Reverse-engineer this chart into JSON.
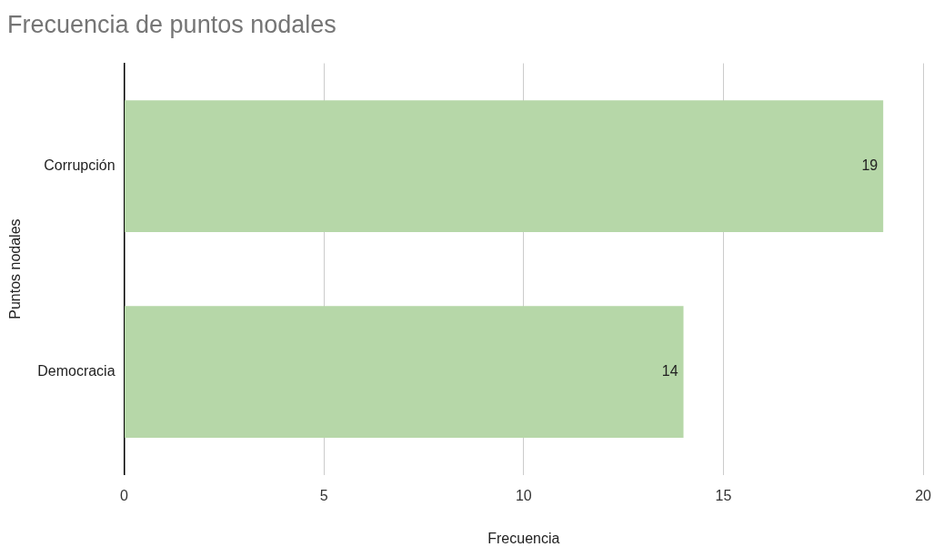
{
  "chart_data": {
    "type": "bar",
    "orientation": "horizontal",
    "title": "Frecuencia de puntos nodales",
    "xlabel": "Frecuencia",
    "ylabel": "Puntos nodales",
    "categories": [
      "Corrupción",
      "Democracia"
    ],
    "values": [
      19,
      14
    ],
    "color": "#b6d7a8",
    "xlim": [
      0,
      20
    ],
    "xticks": [
      0,
      5,
      10,
      15,
      20
    ],
    "grid": "x",
    "data_labels": true,
    "legend": false
  }
}
